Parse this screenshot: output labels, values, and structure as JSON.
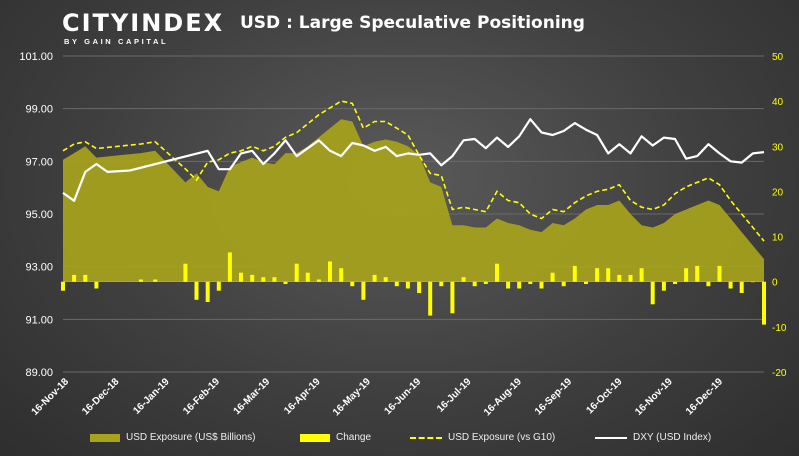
{
  "brand": {
    "name": "CITYINDEX",
    "tagline": "BY GAIN CAPITAL"
  },
  "colors": {
    "area": "#a7a31b",
    "bars": "#ffff00",
    "dashed": "#ffff00",
    "line": "#ffffff",
    "grid": "#6a6a6a"
  },
  "chart_data": {
    "type": "area",
    "title": "USD : Large Speculative Positioning",
    "y_left": {
      "range": [
        89,
        101
      ],
      "ticks": [
        "101.00",
        "99.00",
        "97.00",
        "95.00",
        "93.00",
        "91.00",
        "89.00"
      ]
    },
    "y_right": {
      "range": [
        -20,
        50
      ],
      "ticks": [
        "50",
        "40",
        "30",
        "20",
        "10",
        "0",
        "-10",
        "-20"
      ]
    },
    "x_ticks": [
      "16-Nov-18",
      "16-Dec-18",
      "16-Jan-19",
      "16-Feb-19",
      "16-Mar-19",
      "16-Apr-19",
      "16-May-19",
      "16-Jun-19",
      "16-Jul-19",
      "16-Aug-19",
      "16-Sep-19",
      "16-Oct-19",
      "16-Nov-19",
      "16-Dec-19"
    ],
    "grid": true,
    "legend_position": "bottom",
    "series": [
      {
        "name": "USD Exposure (US$ Billions)",
        "axis": "right",
        "kind": "area",
        "values": [
          [
            0,
            27
          ],
          [
            7,
            28.5
          ],
          [
            14,
            30
          ],
          [
            21,
            27.5
          ],
          [
            49,
            28.5
          ],
          [
            58,
            29
          ],
          [
            77,
            22
          ],
          [
            84,
            24
          ],
          [
            91,
            21
          ],
          [
            98,
            20
          ],
          [
            105,
            25.5
          ],
          [
            112,
            26.5
          ],
          [
            119,
            27.5
          ],
          [
            126,
            26.5
          ],
          [
            133,
            26
          ],
          [
            140,
            28.5
          ],
          [
            147,
            28.5
          ],
          [
            154,
            30
          ],
          [
            161,
            32
          ],
          [
            168,
            34
          ],
          [
            175,
            36
          ],
          [
            182,
            35.5
          ],
          [
            189,
            30
          ],
          [
            196,
            31
          ],
          [
            203,
            31.5
          ],
          [
            210,
            31
          ],
          [
            217,
            30
          ],
          [
            224,
            28
          ],
          [
            231,
            22
          ],
          [
            238,
            21
          ],
          [
            245,
            12.5
          ],
          [
            252,
            12.5
          ],
          [
            259,
            12
          ],
          [
            266,
            12
          ],
          [
            273,
            14
          ],
          [
            280,
            13
          ],
          [
            287,
            12.5
          ],
          [
            294,
            11.5
          ],
          [
            301,
            11
          ],
          [
            308,
            13
          ],
          [
            315,
            12.5
          ],
          [
            322,
            14
          ],
          [
            329,
            16
          ],
          [
            336,
            17
          ],
          [
            343,
            17
          ],
          [
            350,
            18
          ],
          [
            357,
            15
          ],
          [
            364,
            12.5
          ],
          [
            371,
            12
          ],
          [
            378,
            13
          ],
          [
            385,
            15
          ],
          [
            392,
            16
          ],
          [
            399,
            17
          ],
          [
            406,
            18
          ],
          [
            413,
            17
          ],
          [
            420,
            14
          ],
          [
            427,
            11
          ],
          [
            434,
            8
          ],
          [
            441,
            5
          ]
        ]
      },
      {
        "name": "Change",
        "axis": "right",
        "kind": "bar",
        "values": [
          [
            0,
            -2
          ],
          [
            7,
            1.5
          ],
          [
            14,
            1.5
          ],
          [
            21,
            -1.5
          ],
          [
            49,
            0.5
          ],
          [
            58,
            0.5
          ],
          [
            77,
            4
          ],
          [
            84,
            -4
          ],
          [
            91,
            -4.5
          ],
          [
            98,
            -2
          ],
          [
            105,
            6.5
          ],
          [
            112,
            2
          ],
          [
            119,
            1.5
          ],
          [
            126,
            1
          ],
          [
            133,
            1
          ],
          [
            140,
            -0.5
          ],
          [
            147,
            4
          ],
          [
            154,
            2
          ],
          [
            161,
            0.5
          ],
          [
            168,
            4.5
          ],
          [
            175,
            3
          ],
          [
            182,
            -1
          ],
          [
            189,
            -4
          ],
          [
            196,
            1.5
          ],
          [
            203,
            1
          ],
          [
            210,
            -1
          ],
          [
            217,
            -1.5
          ],
          [
            224,
            -2.5
          ],
          [
            231,
            -7.5
          ],
          [
            238,
            -1
          ],
          [
            245,
            -7
          ],
          [
            252,
            1
          ],
          [
            259,
            -1
          ],
          [
            266,
            -0.5
          ],
          [
            273,
            4
          ],
          [
            280,
            -1.5
          ],
          [
            287,
            -1.5
          ],
          [
            294,
            -0.5
          ],
          [
            301,
            -1.5
          ],
          [
            308,
            2
          ],
          [
            315,
            -1
          ],
          [
            322,
            3.5
          ],
          [
            329,
            -0.5
          ],
          [
            336,
            3
          ],
          [
            343,
            3
          ],
          [
            350,
            1.5
          ],
          [
            357,
            1.5
          ],
          [
            364,
            3
          ],
          [
            371,
            -5
          ],
          [
            378,
            -2
          ],
          [
            385,
            -0.5
          ],
          [
            392,
            3
          ],
          [
            399,
            3.5
          ],
          [
            406,
            -1
          ],
          [
            413,
            3.5
          ],
          [
            420,
            -1.5
          ],
          [
            427,
            -2.5
          ],
          [
            434,
            0
          ],
          [
            441,
            -9.5
          ]
        ]
      },
      {
        "name": "USD Exposure (vs G10)",
        "axis": "right",
        "kind": "dashed-line",
        "values": [
          [
            0,
            29
          ],
          [
            7,
            30.5
          ],
          [
            14,
            31
          ],
          [
            21,
            29.5
          ],
          [
            49,
            30.5
          ],
          [
            58,
            31
          ],
          [
            77,
            25
          ],
          [
            84,
            22.5
          ],
          [
            91,
            26.5
          ],
          [
            98,
            27
          ],
          [
            105,
            28.5
          ],
          [
            112,
            29
          ],
          [
            119,
            30
          ],
          [
            126,
            29
          ],
          [
            133,
            30
          ],
          [
            140,
            32
          ],
          [
            147,
            33
          ],
          [
            154,
            35
          ],
          [
            161,
            37
          ],
          [
            168,
            38.5
          ],
          [
            175,
            40
          ],
          [
            182,
            39.5
          ],
          [
            189,
            34
          ],
          [
            196,
            35.5
          ],
          [
            203,
            35.5
          ],
          [
            210,
            34
          ],
          [
            217,
            32.5
          ],
          [
            224,
            28
          ],
          [
            231,
            24
          ],
          [
            238,
            23.5
          ],
          [
            245,
            16
          ],
          [
            252,
            16.5
          ],
          [
            259,
            16
          ],
          [
            266,
            15.5
          ],
          [
            273,
            20
          ],
          [
            280,
            18
          ],
          [
            287,
            17.5
          ],
          [
            294,
            15
          ],
          [
            301,
            14
          ],
          [
            308,
            16
          ],
          [
            315,
            15.5
          ],
          [
            322,
            17.5
          ],
          [
            329,
            19
          ],
          [
            336,
            20
          ],
          [
            343,
            20.5
          ],
          [
            350,
            21.5
          ],
          [
            357,
            18
          ],
          [
            364,
            16.5
          ],
          [
            371,
            16
          ],
          [
            378,
            17
          ],
          [
            385,
            19.5
          ],
          [
            392,
            21
          ],
          [
            399,
            22
          ],
          [
            406,
            23
          ],
          [
            413,
            21.5
          ],
          [
            420,
            18
          ],
          [
            427,
            15
          ],
          [
            434,
            12
          ],
          [
            441,
            9
          ]
        ]
      },
      {
        "name": "DXY (USD Index)",
        "axis": "left",
        "kind": "line",
        "values": [
          [
            0,
            95.8
          ],
          [
            7,
            95.5
          ],
          [
            14,
            96.6
          ],
          [
            21,
            96.9
          ],
          [
            28,
            96.6
          ],
          [
            42,
            96.65
          ],
          [
            91,
            97.4
          ],
          [
            98,
            96.7
          ],
          [
            105,
            96.7
          ],
          [
            112,
            97.3
          ],
          [
            119,
            97.4
          ],
          [
            126,
            96.9
          ],
          [
            133,
            97.3
          ],
          [
            140,
            97.8
          ],
          [
            147,
            97.2
          ],
          [
            154,
            97.5
          ],
          [
            161,
            97.8
          ],
          [
            168,
            97.4
          ],
          [
            175,
            97.2
          ],
          [
            182,
            97.7
          ],
          [
            189,
            97.6
          ],
          [
            196,
            97.4
          ],
          [
            203,
            97.55
          ],
          [
            210,
            97.2
          ],
          [
            217,
            97.3
          ],
          [
            224,
            97.25
          ],
          [
            231,
            97.3
          ],
          [
            238,
            96.85
          ],
          [
            245,
            97.2
          ],
          [
            252,
            97.8
          ],
          [
            259,
            97.85
          ],
          [
            266,
            97.5
          ],
          [
            273,
            97.9
          ],
          [
            280,
            97.55
          ],
          [
            287,
            97.95
          ],
          [
            294,
            98.6
          ],
          [
            301,
            98.1
          ],
          [
            308,
            98.0
          ],
          [
            315,
            98.15
          ],
          [
            322,
            98.45
          ],
          [
            329,
            98.2
          ],
          [
            336,
            98.0
          ],
          [
            343,
            97.3
          ],
          [
            350,
            97.65
          ],
          [
            357,
            97.3
          ],
          [
            364,
            97.95
          ],
          [
            371,
            97.6
          ],
          [
            378,
            97.9
          ],
          [
            385,
            97.85
          ],
          [
            392,
            97.1
          ],
          [
            399,
            97.2
          ],
          [
            406,
            97.65
          ],
          [
            413,
            97.3
          ],
          [
            420,
            97.0
          ],
          [
            427,
            96.95
          ],
          [
            434,
            97.3
          ],
          [
            441,
            97.35
          ]
        ]
      }
    ]
  }
}
